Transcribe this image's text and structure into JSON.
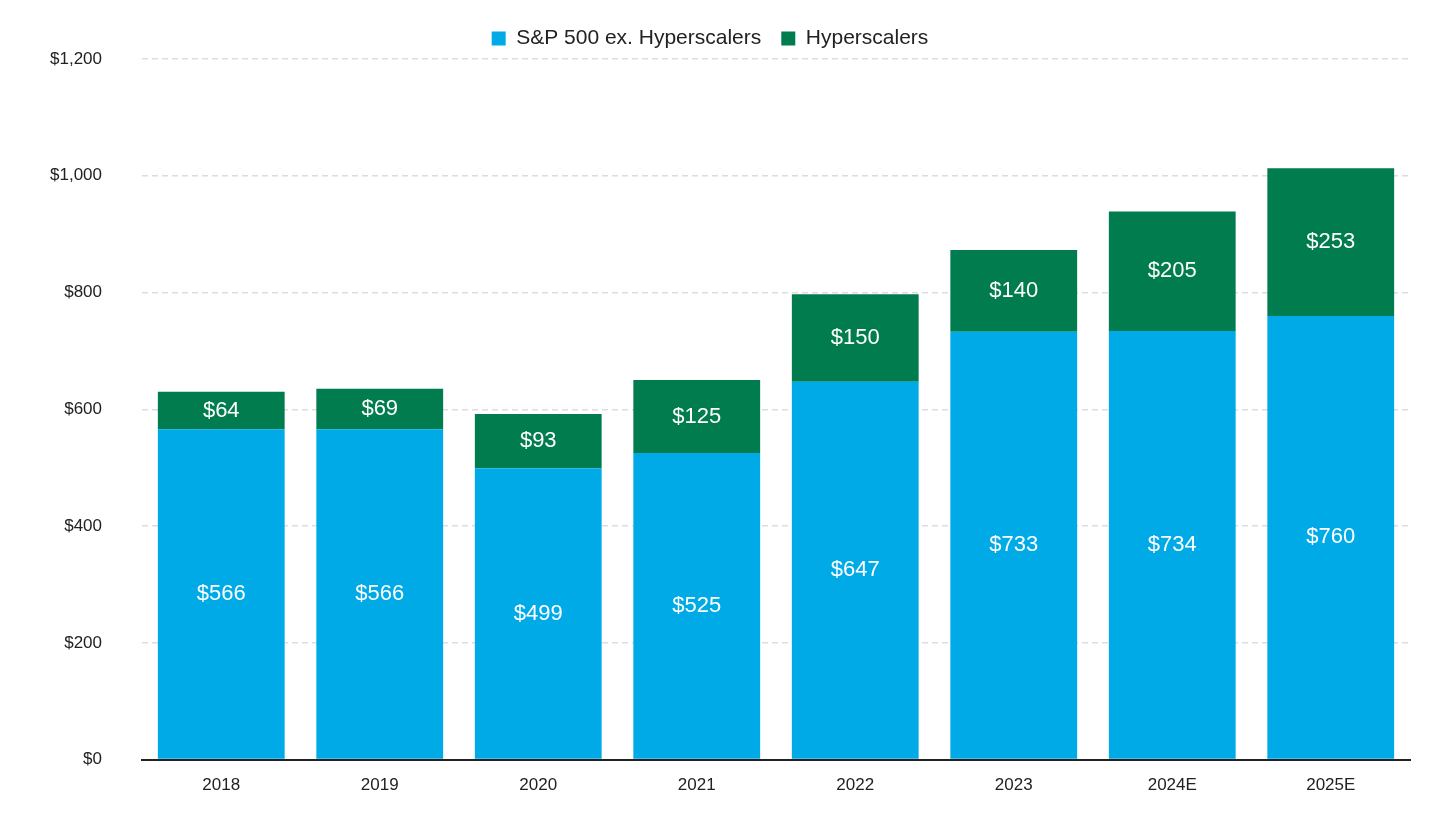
{
  "chart_data": {
    "type": "bar",
    "stacked": true,
    "categories": [
      "2018",
      "2019",
      "2020",
      "2021",
      "2022",
      "2023",
      "2024E",
      "2025E"
    ],
    "series": [
      {
        "name": "S&P 500 ex. Hyperscalers",
        "color": "#00aae7",
        "values": [
          566,
          566,
          499,
          525,
          647,
          733,
          734,
          760
        ],
        "value_labels": [
          "$566",
          "$566",
          "$499",
          "$525",
          "$647",
          "$733",
          "$734",
          "$760"
        ]
      },
      {
        "name": "Hyperscalers",
        "color": "#007c4f",
        "values": [
          64,
          69,
          93,
          125,
          150,
          140,
          205,
          253
        ],
        "value_labels": [
          "$64",
          "$69",
          "$93",
          "$125",
          "$150",
          "$140",
          "$205",
          "$253"
        ]
      }
    ],
    "ylim": [
      0,
      1200
    ],
    "yticks": [
      {
        "value": 0,
        "label": "$0"
      },
      {
        "value": 200,
        "label": "$200"
      },
      {
        "value": 400,
        "label": "$400"
      },
      {
        "value": 600,
        "label": "$600"
      },
      {
        "value": 800,
        "label": "$800"
      },
      {
        "value": 1000,
        "label": "$1,000"
      },
      {
        "value": 1200,
        "label": "$1,200"
      }
    ],
    "grid": true,
    "legend": "top",
    "data_labels": true
  }
}
